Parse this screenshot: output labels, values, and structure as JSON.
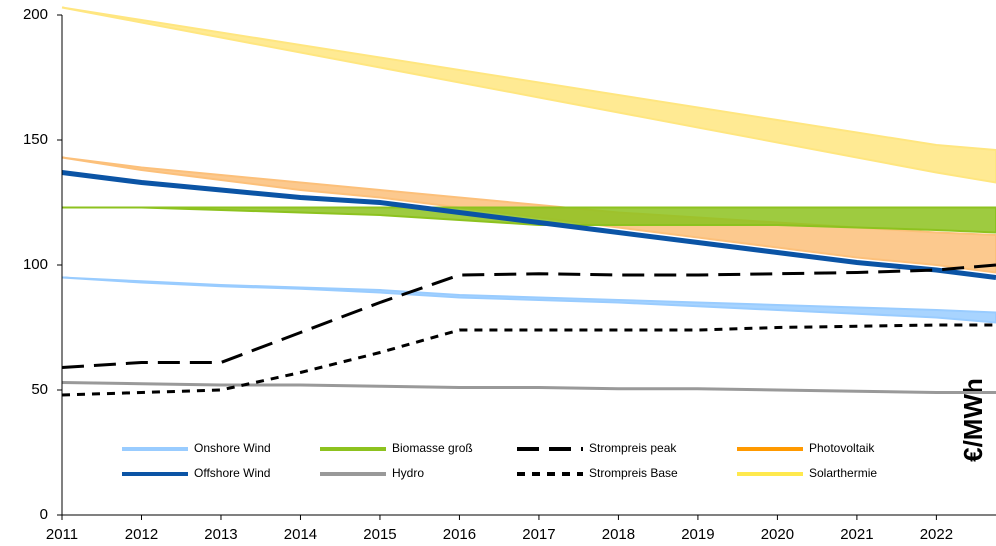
{
  "chart_data": {
    "type": "line",
    "y_label": "€/MWh",
    "x": [
      2011,
      2012,
      2013,
      2014,
      2015,
      2016,
      2017,
      2018,
      2019,
      2020,
      2021,
      2022,
      2022.75
    ],
    "xlim": [
      2011,
      2022.75
    ],
    "xticks": [
      2011,
      2012,
      2013,
      2014,
      2015,
      2016,
      2017,
      2018,
      2019,
      2020,
      2021,
      2022
    ],
    "ylim": [
      0,
      200
    ],
    "yticks": [
      0,
      50,
      100,
      150,
      200
    ],
    "series": [
      {
        "name": "Solarthermie",
        "color": "#ffe680",
        "legend_color": "#ffe94d",
        "high": [
          203,
          198,
          193,
          188,
          183,
          178,
          173,
          168,
          163,
          158,
          153,
          148,
          146
        ],
        "low": [
          203,
          197,
          191,
          185,
          179,
          173,
          167,
          161,
          155,
          149,
          143,
          137,
          133
        ]
      },
      {
        "name": "Photovoltaik",
        "color": "#fcc07a",
        "legend_color": "#ff9900",
        "high": [
          143,
          139,
          136,
          133,
          130,
          127,
          124,
          121,
          119,
          117,
          115,
          113,
          112
        ],
        "low": [
          143,
          138,
          134,
          130,
          127,
          123,
          119,
          115,
          111,
          107,
          103,
          100,
          97
        ]
      },
      {
        "name": "Biomasse groß",
        "color": "#8dc21f",
        "legend_color": "#8dc21f",
        "high": [
          123,
          123,
          123,
          123,
          123,
          123,
          123,
          123,
          123,
          123,
          123,
          123,
          123
        ],
        "low": [
          123,
          123,
          122,
          121,
          120,
          118,
          116,
          116,
          116,
          116,
          115,
          114,
          113
        ]
      },
      {
        "name": "Onshore Wind",
        "color": "#99ccff",
        "legend_color": "#99ccff",
        "high": [
          95,
          93.5,
          92,
          91,
          90,
          88,
          87,
          86,
          85,
          84,
          83,
          82,
          81
        ],
        "low": [
          95,
          93,
          91.5,
          90.5,
          89,
          87,
          86,
          85,
          83.5,
          82,
          80.5,
          79,
          77
        ]
      },
      {
        "name": "Offshore Wind",
        "color": "#0b54a5",
        "legend_color": "#0b54a5",
        "style": "solid",
        "values": [
          137,
          133,
          130,
          127,
          125,
          121,
          117,
          113,
          109,
          105,
          101,
          98,
          95
        ]
      },
      {
        "name": "Hydro",
        "color": "#999999",
        "legend_color": "#999999",
        "style": "solid",
        "values": [
          53,
          52.5,
          52,
          52,
          51.5,
          51,
          51,
          50.5,
          50.5,
          50,
          49.5,
          49,
          49
        ]
      },
      {
        "name": "Strompreis peak",
        "color": "#000000",
        "legend_color": "#000000",
        "style": "dashed",
        "values": [
          59,
          61,
          61,
          73,
          85,
          96,
          96.5,
          96,
          96,
          96.5,
          97,
          98,
          100
        ]
      },
      {
        "name": "Strompreis Base",
        "color": "#000000",
        "legend_color": "#000000",
        "style": "dotted",
        "values": [
          48,
          49,
          50,
          57,
          65,
          74,
          74,
          74,
          74,
          75,
          75.5,
          76,
          76
        ]
      }
    ],
    "legend_order": [
      3,
      2,
      6,
      1,
      4,
      5,
      7,
      0
    ]
  }
}
